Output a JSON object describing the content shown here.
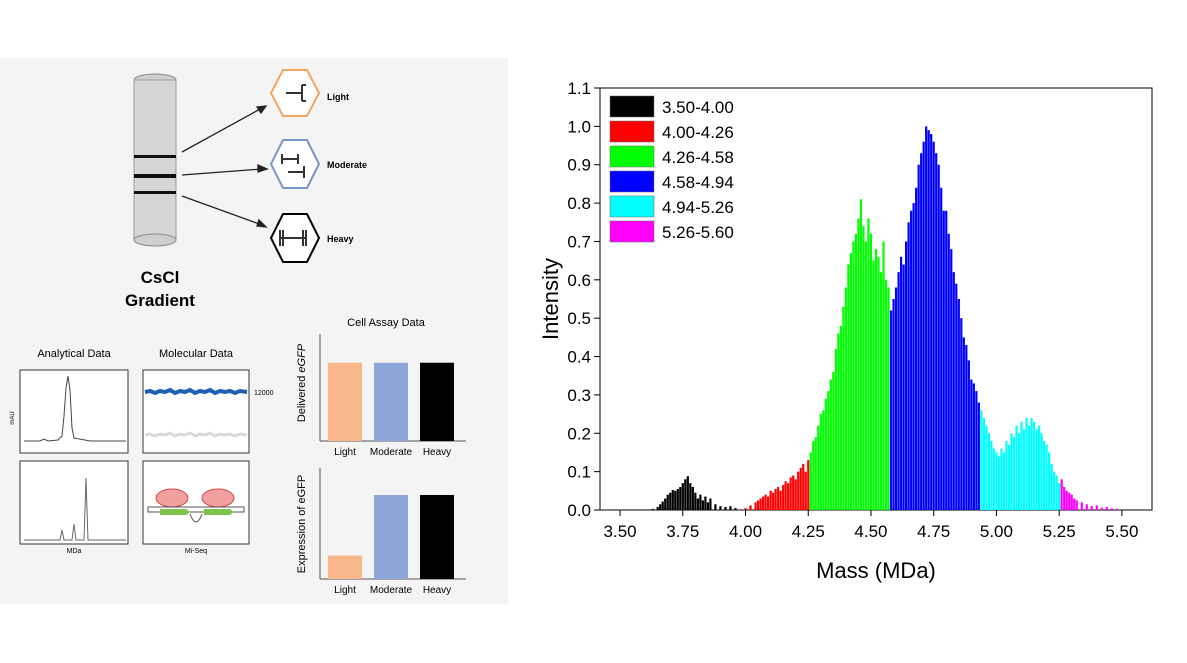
{
  "left": {
    "tube_labels": [
      "Light",
      "Moderate",
      "Heavy"
    ],
    "gradient_title": [
      "CsCl",
      "Gradient"
    ],
    "analytical": {
      "title": "Analytical Data",
      "ylabel": "mAU",
      "xlabel": "MDa"
    },
    "molecular": {
      "title": "Molecular Data",
      "annotation": "12000",
      "xlabel": "Mi-Seq"
    },
    "cell_assay": {
      "title": "Cell Assay Data",
      "delivered_label_plain": "Delivered ",
      "delivered_label_italic": "eGFP",
      "expression_label": "Expression of eGFP",
      "categories": [
        "Light",
        "Moderate",
        "Heavy"
      ],
      "delivered": [
        0.76,
        0.76,
        0.76
      ],
      "expression": [
        0.28,
        1.0,
        1.0
      ],
      "colors": [
        "#F8B78B",
        "#8EA7D9",
        "#000000"
      ]
    }
  },
  "chart_data": {
    "type": "bar",
    "xlabel": "Mass (MDa)",
    "ylabel": "Intensity",
    "xlim": [
      3.42,
      5.62
    ],
    "ylim": [
      0.0,
      1.1
    ],
    "xticks": [
      "3.50",
      "3.75",
      "4.00",
      "4.25",
      "4.50",
      "4.75",
      "5.00",
      "5.25",
      "5.50"
    ],
    "yticks": [
      "0.0",
      "0.1",
      "0.2",
      "0.3",
      "0.4",
      "0.5",
      "0.6",
      "0.7",
      "0.8",
      "0.9",
      "1.0",
      "1.1"
    ],
    "legend_position": "top-left",
    "series": [
      {
        "name": "3.50-4.00",
        "color": "#000000",
        "x": [
          3.63,
          3.65,
          3.66,
          3.67,
          3.68,
          3.69,
          3.7,
          3.71,
          3.72,
          3.73,
          3.74,
          3.75,
          3.76,
          3.77,
          3.78,
          3.79,
          3.8,
          3.81,
          3.82,
          3.83,
          3.84,
          3.85,
          3.86,
          3.88,
          3.9,
          3.92,
          3.94,
          3.96
        ],
        "values": [
          0.003,
          0.008,
          0.015,
          0.022,
          0.03,
          0.04,
          0.045,
          0.052,
          0.05,
          0.055,
          0.06,
          0.07,
          0.08,
          0.088,
          0.07,
          0.06,
          0.045,
          0.03,
          0.04,
          0.025,
          0.035,
          0.02,
          0.03,
          0.015,
          0.01,
          0.008,
          0.01,
          0.005
        ]
      },
      {
        "name": "4.00-4.26",
        "color": "#FF0000",
        "x": [
          4.0,
          4.02,
          4.04,
          4.05,
          4.06,
          4.07,
          4.08,
          4.09,
          4.1,
          4.11,
          4.12,
          4.13,
          4.14,
          4.15,
          4.16,
          4.17,
          4.18,
          4.19,
          4.2,
          4.21,
          4.22,
          4.23,
          4.24,
          4.25
        ],
        "values": [
          0.005,
          0.012,
          0.02,
          0.025,
          0.03,
          0.035,
          0.04,
          0.035,
          0.05,
          0.045,
          0.055,
          0.06,
          0.05,
          0.065,
          0.075,
          0.07,
          0.085,
          0.09,
          0.08,
          0.1,
          0.11,
          0.12,
          0.1,
          0.13
        ]
      },
      {
        "name": "4.26-4.58",
        "color": "#00FF00",
        "x": [
          4.26,
          4.27,
          4.28,
          4.29,
          4.3,
          4.31,
          4.32,
          4.33,
          4.34,
          4.35,
          4.36,
          4.37,
          4.38,
          4.39,
          4.4,
          4.41,
          4.42,
          4.43,
          4.44,
          4.45,
          4.46,
          4.47,
          4.48,
          4.49,
          4.5,
          4.51,
          4.52,
          4.53,
          4.54,
          4.55,
          4.56,
          4.57
        ],
        "values": [
          0.15,
          0.18,
          0.19,
          0.22,
          0.25,
          0.26,
          0.29,
          0.31,
          0.34,
          0.36,
          0.42,
          0.46,
          0.48,
          0.53,
          0.58,
          0.64,
          0.67,
          0.7,
          0.72,
          0.76,
          0.81,
          0.74,
          0.7,
          0.76,
          0.72,
          0.65,
          0.68,
          0.66,
          0.62,
          0.7,
          0.6,
          0.58
        ]
      },
      {
        "name": "4.58-4.94",
        "color": "#0000FF",
        "x": [
          4.58,
          4.59,
          4.6,
          4.61,
          4.62,
          4.63,
          4.64,
          4.65,
          4.66,
          4.67,
          4.68,
          4.69,
          4.7,
          4.71,
          4.72,
          4.73,
          4.74,
          4.75,
          4.76,
          4.77,
          4.78,
          4.79,
          4.8,
          4.81,
          4.82,
          4.83,
          4.84,
          4.85,
          4.86,
          4.87,
          4.88,
          4.89,
          4.9,
          4.91,
          4.92,
          4.93
        ],
        "values": [
          0.52,
          0.55,
          0.58,
          0.62,
          0.66,
          0.64,
          0.7,
          0.75,
          0.78,
          0.8,
          0.84,
          0.9,
          0.93,
          0.96,
          1.0,
          0.99,
          0.98,
          0.96,
          0.93,
          0.9,
          0.84,
          0.78,
          0.78,
          0.72,
          0.68,
          0.62,
          0.59,
          0.55,
          0.5,
          0.45,
          0.43,
          0.39,
          0.34,
          0.33,
          0.31,
          0.28
        ]
      },
      {
        "name": "4.94-5.26",
        "color": "#00FFFF",
        "x": [
          4.94,
          4.95,
          4.96,
          4.97,
          4.98,
          4.99,
          5.0,
          5.01,
          5.02,
          5.03,
          5.04,
          5.05,
          5.06,
          5.07,
          5.08,
          5.09,
          5.1,
          5.11,
          5.12,
          5.13,
          5.14,
          5.15,
          5.16,
          5.17,
          5.18,
          5.19,
          5.2,
          5.21,
          5.22,
          5.23,
          5.24,
          5.25
        ],
        "values": [
          0.26,
          0.24,
          0.22,
          0.2,
          0.18,
          0.16,
          0.15,
          0.14,
          0.16,
          0.15,
          0.18,
          0.17,
          0.2,
          0.19,
          0.22,
          0.2,
          0.23,
          0.21,
          0.24,
          0.22,
          0.24,
          0.23,
          0.21,
          0.22,
          0.2,
          0.18,
          0.17,
          0.15,
          0.12,
          0.1,
          0.09,
          0.07
        ]
      },
      {
        "name": "5.26-5.60",
        "color": "#FF00FF",
        "x": [
          5.26,
          5.27,
          5.28,
          5.29,
          5.3,
          5.31,
          5.32,
          5.34,
          5.36,
          5.38,
          5.4,
          5.42,
          5.44,
          5.46,
          5.48
        ],
        "values": [
          0.08,
          0.06,
          0.05,
          0.045,
          0.04,
          0.03,
          0.025,
          0.02,
          0.015,
          0.01,
          0.012,
          0.006,
          0.008,
          0.004,
          0.003
        ]
      }
    ]
  }
}
